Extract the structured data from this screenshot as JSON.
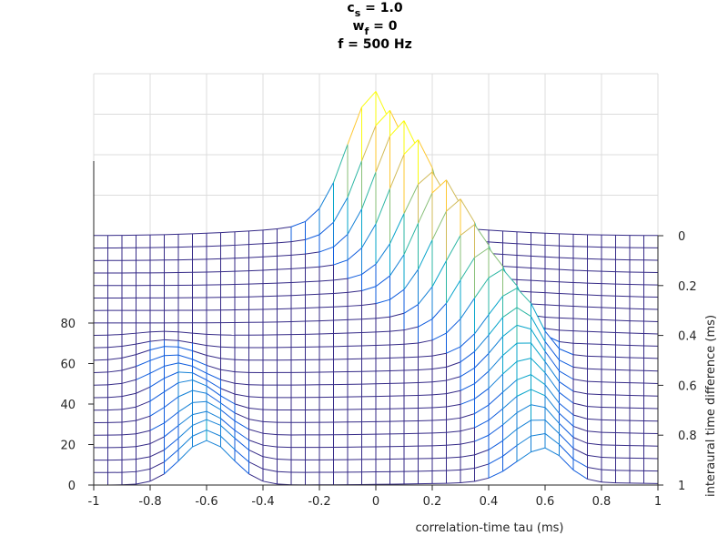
{
  "chart_data": {
    "type": "heatmap",
    "style": "3d-mesh",
    "title_lines": [
      {
        "base": "c",
        "sub": "s",
        "rest": " = 1.0"
      },
      {
        "base": "w",
        "sub": "f",
        "rest": " = 0"
      },
      {
        "base": "f = 500 Hz",
        "sub": "",
        "rest": ""
      }
    ],
    "xlabel": "correlation-time tau (ms)",
    "ylabel": "interaural time difference (ms)",
    "zlabel": "",
    "xlim": [
      -1,
      1
    ],
    "ylim": [
      0,
      1
    ],
    "zlim": [
      0,
      80
    ],
    "x_ticks": [
      "-1",
      "-0.8",
      "-0.6",
      "-0.4",
      "-0.2",
      "0",
      "0.2",
      "0.4",
      "0.6",
      "0.8",
      "1"
    ],
    "y_ticks": [
      "0",
      "0.2",
      "0.4",
      "0.6",
      "0.8",
      "1"
    ],
    "z_ticks": [
      "0",
      "20",
      "40",
      "60",
      "80"
    ],
    "tau_step": 0.05,
    "itd": [
      0,
      0.05,
      0.1,
      0.15,
      0.2,
      0.25,
      0.3,
      0.35,
      0.4,
      0.45,
      0.5,
      0.55,
      0.6,
      0.65,
      0.7,
      0.75,
      0.8,
      0.85,
      0.9,
      0.95,
      1
    ],
    "main_peak_tau": [
      0,
      0.05,
      0.1,
      0.15,
      0.2,
      0.25,
      0.3,
      0.35,
      0.4,
      0.45,
      0.5,
      0.51,
      0.52,
      0.53,
      0.54,
      0.55,
      0.56,
      0.57,
      0.58,
      0.59,
      0.6
    ],
    "main_peak_z": [
      66,
      63,
      64,
      61,
      52,
      54,
      51,
      45,
      40,
      36,
      33,
      30,
      28,
      26,
      24,
      22,
      21,
      20,
      19,
      18,
      17
    ],
    "side_peak_tau": [
      -0.75,
      -0.75,
      -0.75,
      -0.75,
      -0.75,
      -0.75,
      -0.75,
      -0.75,
      -0.75,
      -0.74,
      -0.73,
      -0.72,
      -0.7,
      -0.68,
      -0.66,
      -0.64,
      -0.62,
      -0.61,
      -0.6,
      -0.6,
      -0.6
    ],
    "side_peak_z": [
      0,
      0,
      0,
      0,
      0,
      0,
      0,
      0,
      2,
      4,
      7,
      9,
      11,
      13,
      15,
      16,
      17,
      18,
      20,
      21,
      22
    ],
    "colormap": [
      "#352a87",
      "#0f5cdd",
      "#1481d6",
      "#06a4ca",
      "#2eb7a4",
      "#87bf77",
      "#d1bb59",
      "#fec832",
      "#f9fb0e"
    ],
    "grid": true,
    "legend": "none"
  }
}
